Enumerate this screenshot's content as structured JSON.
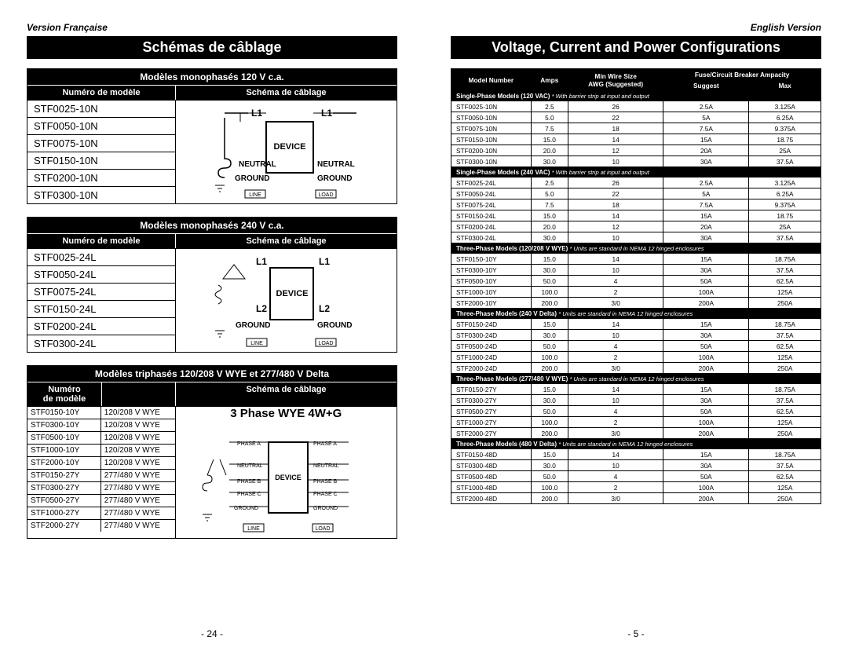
{
  "left": {
    "version": "Version Française",
    "title": "Schémas de câblage",
    "pageNum": "- 24 -",
    "sec1": {
      "head": "Modèles monophasés 120 V c.a.",
      "colA": "Numéro de modèle",
      "colB": "Schéma de câblage",
      "models": [
        "STF0025-10N",
        "STF0050-10N",
        "STF0075-10N",
        "STF0150-10N",
        "STF0200-10N",
        "STF0300-10N"
      ],
      "diagramLabels": {
        "l1a": "L1",
        "l1b": "L1",
        "dev": "DEVICE",
        "neut": "NEUTRAL",
        "gnd": "GROUND",
        "line": "LINE",
        "load": "LOAD"
      }
    },
    "sec2": {
      "head": "Modèles monophasés 240 V c.a.",
      "colA": "Numéro de modèle",
      "colB": "Schéma de câblage",
      "models": [
        "STF0025-24L",
        "STF0050-24L",
        "STF0075-24L",
        "STF0150-24L",
        "STF0200-24L",
        "STF0300-24L"
      ],
      "diagramLabels": {
        "l1": "L1",
        "l2": "L2",
        "dev": "DEVICE",
        "gnd": "GROUND",
        "line": "LINE",
        "load": "LOAD"
      }
    },
    "sec3": {
      "head": "Modèles triphasés 120/208 V WYE et 277/480 V Delta",
      "colA": "Numéro\nde modèle",
      "colB": "Schéma de câblage",
      "rows": [
        [
          "STF0150-10Y",
          "120/208 V WYE"
        ],
        [
          "STF0300-10Y",
          "120/208 V WYE"
        ],
        [
          "STF0500-10Y",
          "120/208 V WYE"
        ],
        [
          "STF1000-10Y",
          "120/208 V WYE"
        ],
        [
          "STF2000-10Y",
          "120/208 V WYE"
        ],
        [
          "STF0150-27Y",
          "277/480 V WYE"
        ],
        [
          "STF0300-27Y",
          "277/480 V WYE"
        ],
        [
          "STF0500-27Y",
          "277/480 V WYE"
        ],
        [
          "STF1000-27Y",
          "277/480 V WYE"
        ],
        [
          "STF2000-27Y",
          "277/480 V WYE"
        ]
      ],
      "diagramTitle": "3 Phase WYE 4W+G",
      "diagramLabels": {
        "pa": "PHASE A",
        "pb": "PHASE B",
        "pc": "PHASE C",
        "neut": "NEUTRAL",
        "gnd": "GROUND",
        "dev": "DEVICE",
        "line": "LINE",
        "load": "LOAD"
      }
    }
  },
  "right": {
    "version": "English Version",
    "title": "Voltage, Current and Power Configurations",
    "pageNum": "- 5 -",
    "headers": {
      "model": "Model Number",
      "amps": "Amps",
      "wire": "Min Wire Size\nAWG (Suggested)",
      "fuse": "Fuse/Circuit Breaker Ampacity",
      "suggest": "Suggest",
      "max": "Max"
    },
    "sections": [
      {
        "title": "Single-Phase Models (120 VAC) ",
        "note": "* With barrier strip at input and output",
        "rows": [
          [
            "STF0025-10N",
            "2.5",
            "26",
            "2.5A",
            "3.125A"
          ],
          [
            "STF0050-10N",
            "5.0",
            "22",
            "5A",
            "6.25A"
          ],
          [
            "STF0075-10N",
            "7.5",
            "18",
            "7.5A",
            "9.375A"
          ],
          [
            "STF0150-10N",
            "15.0",
            "14",
            "15A",
            "18.75"
          ],
          [
            "STF0200-10N",
            "20.0",
            "12",
            "20A",
            "25A"
          ],
          [
            "STF0300-10N",
            "30.0",
            "10",
            "30A",
            "37.5A"
          ]
        ]
      },
      {
        "title": "Single-Phase Models (240 VAC) ",
        "note": "* With barrier strip at input and output",
        "rows": [
          [
            "STF0025-24L",
            "2.5",
            "26",
            "2.5A",
            "3.125A"
          ],
          [
            "STF0050-24L",
            "5.0",
            "22",
            "5A",
            "6.25A"
          ],
          [
            "STF0075-24L",
            "7.5",
            "18",
            "7.5A",
            "9.375A"
          ],
          [
            "STF0150-24L",
            "15.0",
            "14",
            "15A",
            "18.75"
          ],
          [
            "STF0200-24L",
            "20.0",
            "12",
            "20A",
            "25A"
          ],
          [
            "STF0300-24L",
            "30.0",
            "10",
            "30A",
            "37.5A"
          ]
        ]
      },
      {
        "title": "Three-Phase Models (120/208 V WYE) ",
        "note": "* Units are standard in NEMA 12 hinged enclosures",
        "rows": [
          [
            "STF0150-10Y",
            "15.0",
            "14",
            "15A",
            "18.75A"
          ],
          [
            "STF0300-10Y",
            "30.0",
            "10",
            "30A",
            "37.5A"
          ],
          [
            "STF0500-10Y",
            "50.0",
            "4",
            "50A",
            "62.5A"
          ],
          [
            "STF1000-10Y",
            "100.0",
            "2",
            "100A",
            "125A"
          ],
          [
            "STF2000-10Y",
            "200.0",
            "3/0",
            "200A",
            "250A"
          ]
        ]
      },
      {
        "title": "Three-Phase Models (240 V Delta) ",
        "note": "* Units are standard in NEMA 12 hinged enclosures",
        "rows": [
          [
            "STF0150-24D",
            "15.0",
            "14",
            "15A",
            "18.75A"
          ],
          [
            "STF0300-24D",
            "30.0",
            "10",
            "30A",
            "37.5A"
          ],
          [
            "STF0500-24D",
            "50.0",
            "4",
            "50A",
            "62.5A"
          ],
          [
            "STF1000-24D",
            "100.0",
            "2",
            "100A",
            "125A"
          ],
          [
            "STF2000-24D",
            "200.0",
            "3/0",
            "200A",
            "250A"
          ]
        ]
      },
      {
        "title": "Three-Phase Models (277/480 V WYE) ",
        "note": "* Units are standard in NEMA 12 hinged enclosures",
        "rows": [
          [
            "STF0150-27Y",
            "15.0",
            "14",
            "15A",
            "18.75A"
          ],
          [
            "STF0300-27Y",
            "30.0",
            "10",
            "30A",
            "37.5A"
          ],
          [
            "STF0500-27Y",
            "50.0",
            "4",
            "50A",
            "62.5A"
          ],
          [
            "STF1000-27Y",
            "100.0",
            "2",
            "100A",
            "125A"
          ],
          [
            "STF2000-27Y",
            "200.0",
            "3/0",
            "200A",
            "250A"
          ]
        ]
      },
      {
        "title": "Three-Phase Models (480 V Delta) ",
        "note": "* Units are standard in NEMA 12 hinged enclosures",
        "rows": [
          [
            "STF0150-48D",
            "15.0",
            "14",
            "15A",
            "18.75A"
          ],
          [
            "STF0300-48D",
            "30.0",
            "10",
            "30A",
            "37.5A"
          ],
          [
            "STF0500-48D",
            "50.0",
            "4",
            "50A",
            "62.5A"
          ],
          [
            "STF1000-48D",
            "100.0",
            "2",
            "100A",
            "125A"
          ],
          [
            "STF2000-48D",
            "200.0",
            "3/0",
            "200A",
            "250A"
          ]
        ]
      }
    ]
  }
}
